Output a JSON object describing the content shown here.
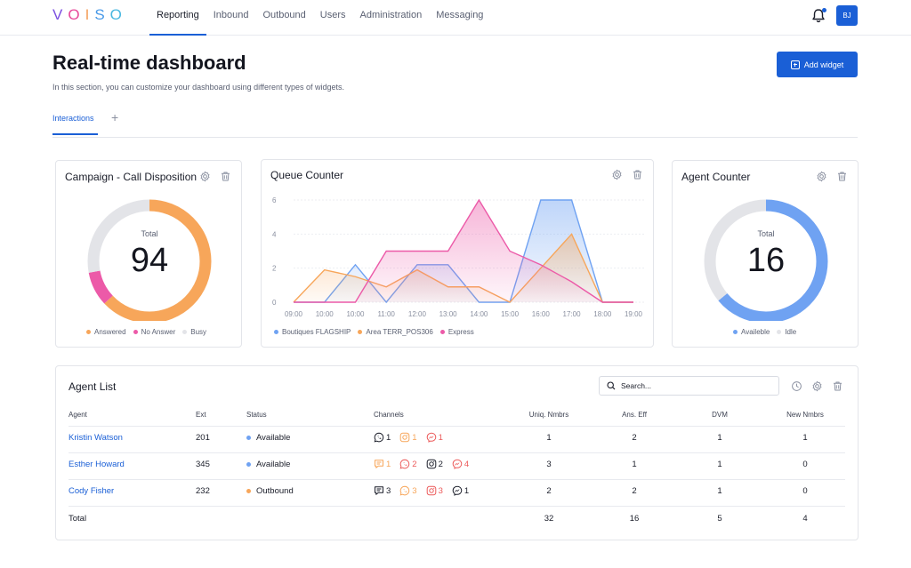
{
  "app": {
    "logo_letters": [
      "V",
      "O",
      "I",
      "S",
      "O"
    ],
    "logo_colors": [
      "#7b4fe0",
      "#e84a9a",
      "#f5a05c",
      "#4a9ae8",
      "#4ab8e0"
    ],
    "nav": [
      "Reporting",
      "Inbound",
      "Outbound",
      "Users",
      "Administration",
      "Messaging"
    ],
    "active_nav": "Reporting",
    "user_initials": "BJ",
    "accent": "#1a5fd6"
  },
  "header": {
    "title": "Real-time dashboard",
    "description": "In this section, you can customize your dashboard using different types of widgets.",
    "add_widget": "Add widget",
    "tabs": [
      "Interactions"
    ],
    "tab_add": "+"
  },
  "campaign_widget": {
    "title": "Campaign - Call Disposition",
    "total_label": "Total",
    "total_value": "94",
    "legend": [
      {
        "label": "Answered",
        "color": "#f7a65a"
      },
      {
        "label": "No Answer",
        "color": "#ec5aa8"
      },
      {
        "label": "Busy",
        "color": "#e3e4e8"
      }
    ]
  },
  "queue_widget": {
    "title": "Queue Counter",
    "legend": [
      {
        "label": "Boutiques FLAGSHIP",
        "color": "#6fa2f2"
      },
      {
        "label": "Area TERR_POS306",
        "color": "#f7a65a"
      },
      {
        "label": "Express",
        "color": "#ec5aa8"
      }
    ]
  },
  "agent_counter_widget": {
    "title": "Agent Counter",
    "total_label": "Total",
    "total_value": "16",
    "legend": [
      {
        "label": "Availeble",
        "color": "#6fa2f2"
      },
      {
        "label": "Idle",
        "color": "#e3e4e8"
      }
    ]
  },
  "chart_data": [
    {
      "type": "pie",
      "title": "Campaign - Call Disposition",
      "categories": [
        "Answered",
        "No Answer",
        "Busy"
      ],
      "values": [
        0.63,
        0.09,
        0.28
      ],
      "total": 94
    },
    {
      "type": "area",
      "title": "Queue Counter",
      "x": [
        "09:00",
        "10:00",
        "10:00",
        "11:00",
        "12:00",
        "13:00",
        "14:00",
        "15:00",
        "16:00",
        "17:00",
        "18:00",
        "19:00"
      ],
      "ylim": [
        0,
        6
      ],
      "yticks": [
        0,
        2,
        4,
        6
      ],
      "series": [
        {
          "name": "Boutiques FLAGSHIP",
          "values": [
            0,
            0,
            2.2,
            0,
            2.2,
            2.2,
            0,
            0,
            6,
            6,
            0,
            0
          ]
        },
        {
          "name": "Area TERR_POS306",
          "values": [
            0,
            1.9,
            1.5,
            0.9,
            1.9,
            0.9,
            0.9,
            0,
            2,
            4,
            0,
            0
          ]
        },
        {
          "name": "Express",
          "values": [
            0,
            0,
            0,
            3,
            3,
            3,
            6,
            3,
            2.2,
            1.2,
            0,
            0
          ]
        }
      ]
    },
    {
      "type": "pie",
      "title": "Agent Counter",
      "categories": [
        "Availeble",
        "Idle"
      ],
      "values": [
        0.64,
        0.36
      ],
      "total": 16
    }
  ],
  "agent_list": {
    "title": "Agent List",
    "search_placeholder": "Search...",
    "columns": [
      "Agent",
      "Ext",
      "Status",
      "Channels",
      "Uniq. Nmbrs",
      "Ans. Eff",
      "DVM",
      "New Nmbrs"
    ],
    "rows": [
      {
        "agent": "Kristin Watson",
        "ext": "201",
        "status": "Available",
        "status_color": "#6fa2f2",
        "channels": [
          {
            "icon": "whatsapp-icon",
            "count": "1",
            "color": "#1a1d29"
          },
          {
            "icon": "instagram-icon",
            "count": "1",
            "color": "#f7a65a"
          },
          {
            "icon": "messenger-icon",
            "count": "1",
            "color": "#ec5a5a"
          }
        ],
        "uniq": "1",
        "ans_eff": "2",
        "dvm": "1",
        "new": "1"
      },
      {
        "agent": "Esther Howard",
        "ext": "345",
        "status": "Available",
        "status_color": "#6fa2f2",
        "channels": [
          {
            "icon": "chat-icon",
            "count": "1",
            "color": "#f7a65a"
          },
          {
            "icon": "whatsapp-icon",
            "count": "2",
            "color": "#ec5a5a"
          },
          {
            "icon": "instagram-icon",
            "count": "2",
            "color": "#1a1d29"
          },
          {
            "icon": "messenger-icon",
            "count": "4",
            "color": "#ec5a5a"
          }
        ],
        "uniq": "3",
        "ans_eff": "1",
        "dvm": "1",
        "new": "0"
      },
      {
        "agent": "Cody Fisher",
        "ext": "232",
        "status": "Outbound",
        "status_color": "#f7a65a",
        "channels": [
          {
            "icon": "chat-icon",
            "count": "3",
            "color": "#1a1d29"
          },
          {
            "icon": "whatsapp-icon",
            "count": "3",
            "color": "#f7a65a"
          },
          {
            "icon": "instagram-icon",
            "count": "3",
            "color": "#ec5a5a"
          },
          {
            "icon": "messenger-icon",
            "count": "1",
            "color": "#1a1d29"
          }
        ],
        "uniq": "2",
        "ans_eff": "2",
        "dvm": "1",
        "new": "0"
      }
    ],
    "total": {
      "label": "Total",
      "uniq": "32",
      "ans_eff": "16",
      "dvm": "5",
      "new": "4"
    }
  }
}
